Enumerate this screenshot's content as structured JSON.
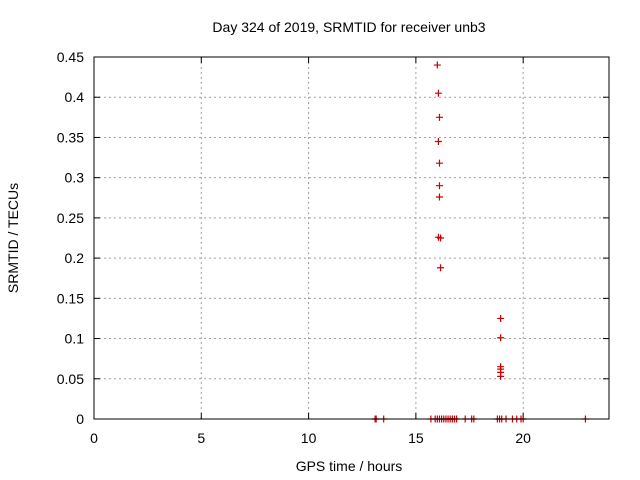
{
  "chart_data": {
    "type": "scatter",
    "title": "Day 324 of 2019, SRMTID for receiver unb3",
    "xlabel": "GPS time / hours",
    "ylabel": "SRMTID / TECUs",
    "xlim": [
      0,
      24
    ],
    "ylim": [
      0,
      0.45
    ],
    "xticks": [
      0,
      5,
      10,
      15,
      20
    ],
    "xtick_labels": [
      "0",
      "5",
      "10",
      "15",
      "20"
    ],
    "yticks": [
      0,
      0.05,
      0.1,
      0.15,
      0.2,
      0.25,
      0.3,
      0.35,
      0.4,
      0.45
    ],
    "ytick_labels": [
      "0",
      "0.05",
      "0.1",
      "0.15",
      "0.2",
      "0.25",
      "0.3",
      "0.35",
      "0.4",
      "0.45"
    ],
    "grid": true,
    "marker": "+",
    "color": "#cc0000",
    "series": [
      {
        "name": "SRMTID",
        "x": [
          16.0,
          16.05,
          16.1,
          16.05,
          16.1,
          16.1,
          16.1,
          16.05,
          16.15,
          16.15,
          18.95,
          18.95,
          18.95,
          18.95,
          18.95,
          18.95,
          13.1,
          13.15,
          13.5,
          15.7,
          15.9,
          16.0,
          16.1,
          16.2,
          16.3,
          16.4,
          16.5,
          16.6,
          16.7,
          16.8,
          16.9,
          17.3,
          17.6,
          17.7,
          18.8,
          18.9,
          19.0,
          19.2,
          19.5,
          19.7,
          19.9,
          20.0,
          22.9
        ],
        "y": [
          0.44,
          0.405,
          0.375,
          0.345,
          0.318,
          0.29,
          0.276,
          0.226,
          0.225,
          0.188,
          0.125,
          0.101,
          0.065,
          0.062,
          0.058,
          0.053,
          0,
          0,
          0,
          0,
          0,
          0,
          0,
          0,
          0,
          0,
          0,
          0,
          0,
          0,
          0,
          0,
          0,
          0,
          0,
          0,
          0,
          0,
          0,
          0,
          0,
          0,
          0
        ]
      }
    ]
  }
}
